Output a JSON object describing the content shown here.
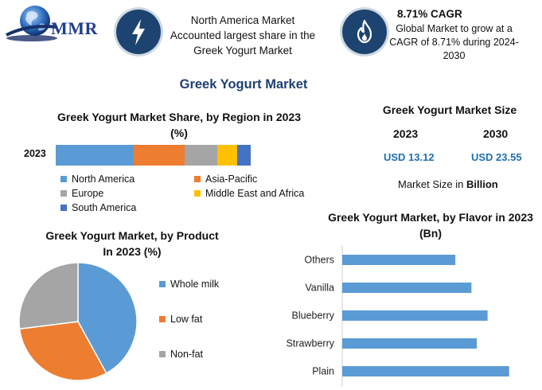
{
  "header": {
    "logo_text": "MMR",
    "fact_1_text": "North America Market Accounted largest share in the Greek Yogurt Market",
    "cagr_title": "8.71% CAGR",
    "cagr_desc": "Global Market to grow at a CAGR of 8.71% during 2024-2030",
    "fact_1_icon": "lightning-bolt-icon",
    "cagr_icon": "flame-icon",
    "icon_circle_color": "#1d4470"
  },
  "main_title": "Greek Yogurt Market",
  "market_size": {
    "title": "Greek Yogurt Market Size",
    "year_1": "2023",
    "year_2": "2030",
    "value_1": "USD 13.12",
    "value_2": "USD 23.55",
    "unit_prefix": "Market Size in",
    "unit_bold": "Billion"
  },
  "chart_data": [
    {
      "type": "bar",
      "orientation": "horizontal-stacked",
      "title": "Greek Yogurt Market Share, by Region in 2023 (%)",
      "categories": [
        "2023"
      ],
      "series": [
        {
          "name": "North America",
          "values": [
            40
          ],
          "color": "#5b9bd5"
        },
        {
          "name": "Asia-Pacific",
          "values": [
            26
          ],
          "color": "#ed7d31"
        },
        {
          "name": "Europe",
          "values": [
            17
          ],
          "color": "#a5a5a5"
        },
        {
          "name": "Middle East and Africa",
          "values": [
            10
          ],
          "color": "#ffc000"
        },
        {
          "name": "South America",
          "values": [
            7
          ],
          "color": "#4472c4"
        }
      ],
      "legend": "bottom"
    },
    {
      "type": "pie",
      "title": "Greek Yogurt Market, by Product In 2023 (%)",
      "slices": [
        {
          "name": "Whole milk",
          "value": 42,
          "color": "#5b9bd5"
        },
        {
          "name": "Low fat",
          "value": 31,
          "color": "#ed7d31"
        },
        {
          "name": "Non-fat",
          "value": 27,
          "color": "#a5a5a5"
        }
      ],
      "legend": "right"
    },
    {
      "type": "bar",
      "orientation": "horizontal",
      "title": "Greek Yogurt Market, by Flavor in 2023 (Bn)",
      "categories": [
        "Others",
        "Vanilla",
        "Blueberry",
        "Strawberry",
        "Plain"
      ],
      "values": [
        2.1,
        2.4,
        2.7,
        2.5,
        3.1
      ],
      "xlim": [
        0,
        3.4
      ],
      "color": "#5b9bd5",
      "grid": false
    }
  ]
}
